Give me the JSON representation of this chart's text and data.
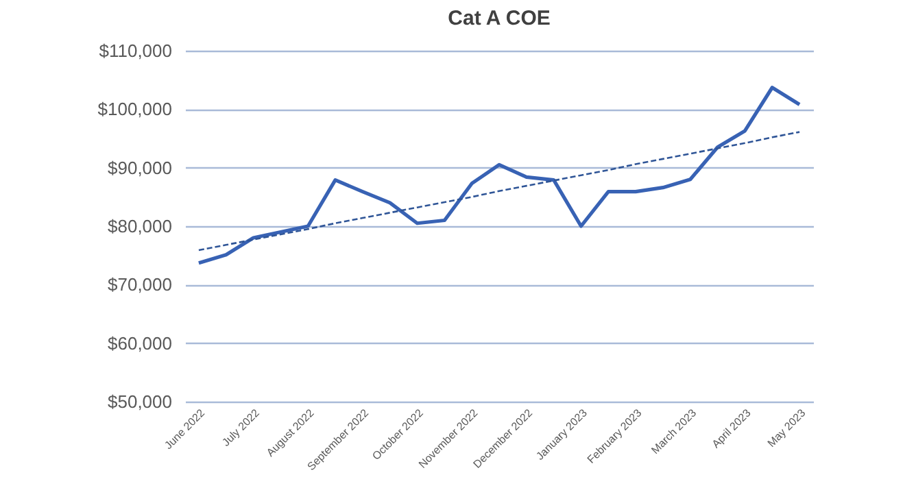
{
  "chart_data": {
    "type": "line",
    "title": "Cat A COE",
    "categories": [
      "June 2022",
      null,
      "July 2022",
      null,
      "August 2022",
      null,
      "September 2022",
      null,
      "October 2022",
      null,
      "November 2022",
      null,
      "December 2022",
      null,
      "January 2023",
      null,
      "February 2023",
      null,
      "March 2023",
      null,
      "April 2023",
      null,
      "May 2023"
    ],
    "series": [
      {
        "color": "#3862b4",
        "values": [
          73700,
          75100,
          78000,
          79000,
          80000,
          87900,
          85900,
          84000,
          80500,
          81000,
          87300,
          90500,
          88400,
          87900,
          80000,
          85900,
          85900,
          86600,
          88000,
          93500,
          96300,
          103700,
          100800
        ]
      },
      {
        "color": "#2f5597",
        "line_style": "dashed",
        "values": [
          75900,
          76800,
          77700,
          78600,
          79500,
          80500,
          81400,
          82300,
          83200,
          84100,
          85000,
          86000,
          86900,
          87800,
          88700,
          89600,
          90600,
          91500,
          92400,
          93300,
          94200,
          95200,
          96100
        ]
      }
    ],
    "ylim": [
      50000,
      110000
    ],
    "yticks": [
      {
        "value": 50000,
        "label": "$50,000"
      },
      {
        "value": 60000,
        "label": "$60,000"
      },
      {
        "value": 70000,
        "label": "$70,000"
      },
      {
        "value": 80000,
        "label": "$80,000"
      },
      {
        "value": 90000,
        "label": "$90,000"
      },
      {
        "value": 100000,
        "label": "$100,000"
      },
      {
        "value": 110000,
        "label": "$110,000"
      }
    ],
    "grid": "y"
  }
}
